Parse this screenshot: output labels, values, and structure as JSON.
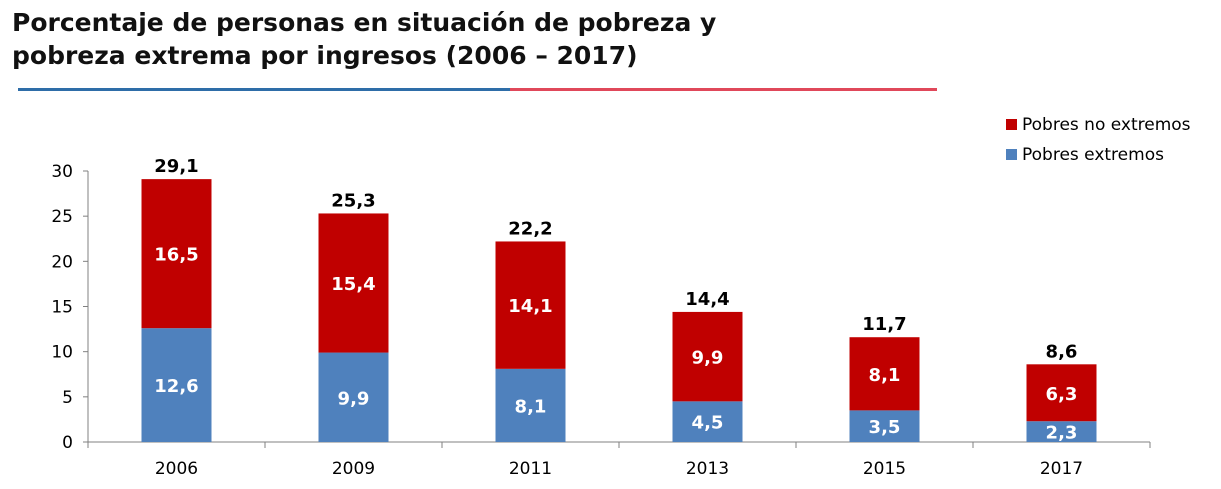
{
  "title": {
    "line1": "Porcentaje de personas en situación de pobreza y",
    "line2": "pobreza extrema por ingresos (2006 – 2017)"
  },
  "colors": {
    "rule_left": "#2e6da8",
    "rule_right": "#e0485a",
    "series_no_extremos": "#c00000",
    "series_extremos": "#4f81bd"
  },
  "chart_data": {
    "type": "bar",
    "stacked": true,
    "categories": [
      "2006",
      "2009",
      "2011",
      "2013",
      "2015",
      "2017"
    ],
    "series": [
      {
        "name": "Pobres extremos",
        "values": [
          12.6,
          9.9,
          8.1,
          4.5,
          3.5,
          2.3
        ],
        "labels": [
          "12,6",
          "9,9",
          "8,1",
          "4,5",
          "3,5",
          "2,3"
        ],
        "color": "#4f81bd"
      },
      {
        "name": "Pobres no extremos",
        "values": [
          16.5,
          15.4,
          14.1,
          9.9,
          8.1,
          6.3
        ],
        "labels": [
          "16,5",
          "15,4",
          "14,1",
          "9,9",
          "8,1",
          "6,3"
        ],
        "color": "#c00000"
      }
    ],
    "totals": [
      29.1,
      25.3,
      22.2,
      14.4,
      11.7,
      8.6
    ],
    "total_labels": [
      "29,1",
      "25,3",
      "22,2",
      "14,4",
      "11,7",
      "8,6"
    ],
    "ylim": [
      0,
      30
    ],
    "yticks": [
      0,
      5,
      10,
      15,
      20,
      25,
      30
    ],
    "xlabel": "",
    "ylabel": "",
    "legend": {
      "position": "top-right",
      "entries": [
        "Pobres no extremos",
        "Pobres extremos"
      ]
    }
  }
}
